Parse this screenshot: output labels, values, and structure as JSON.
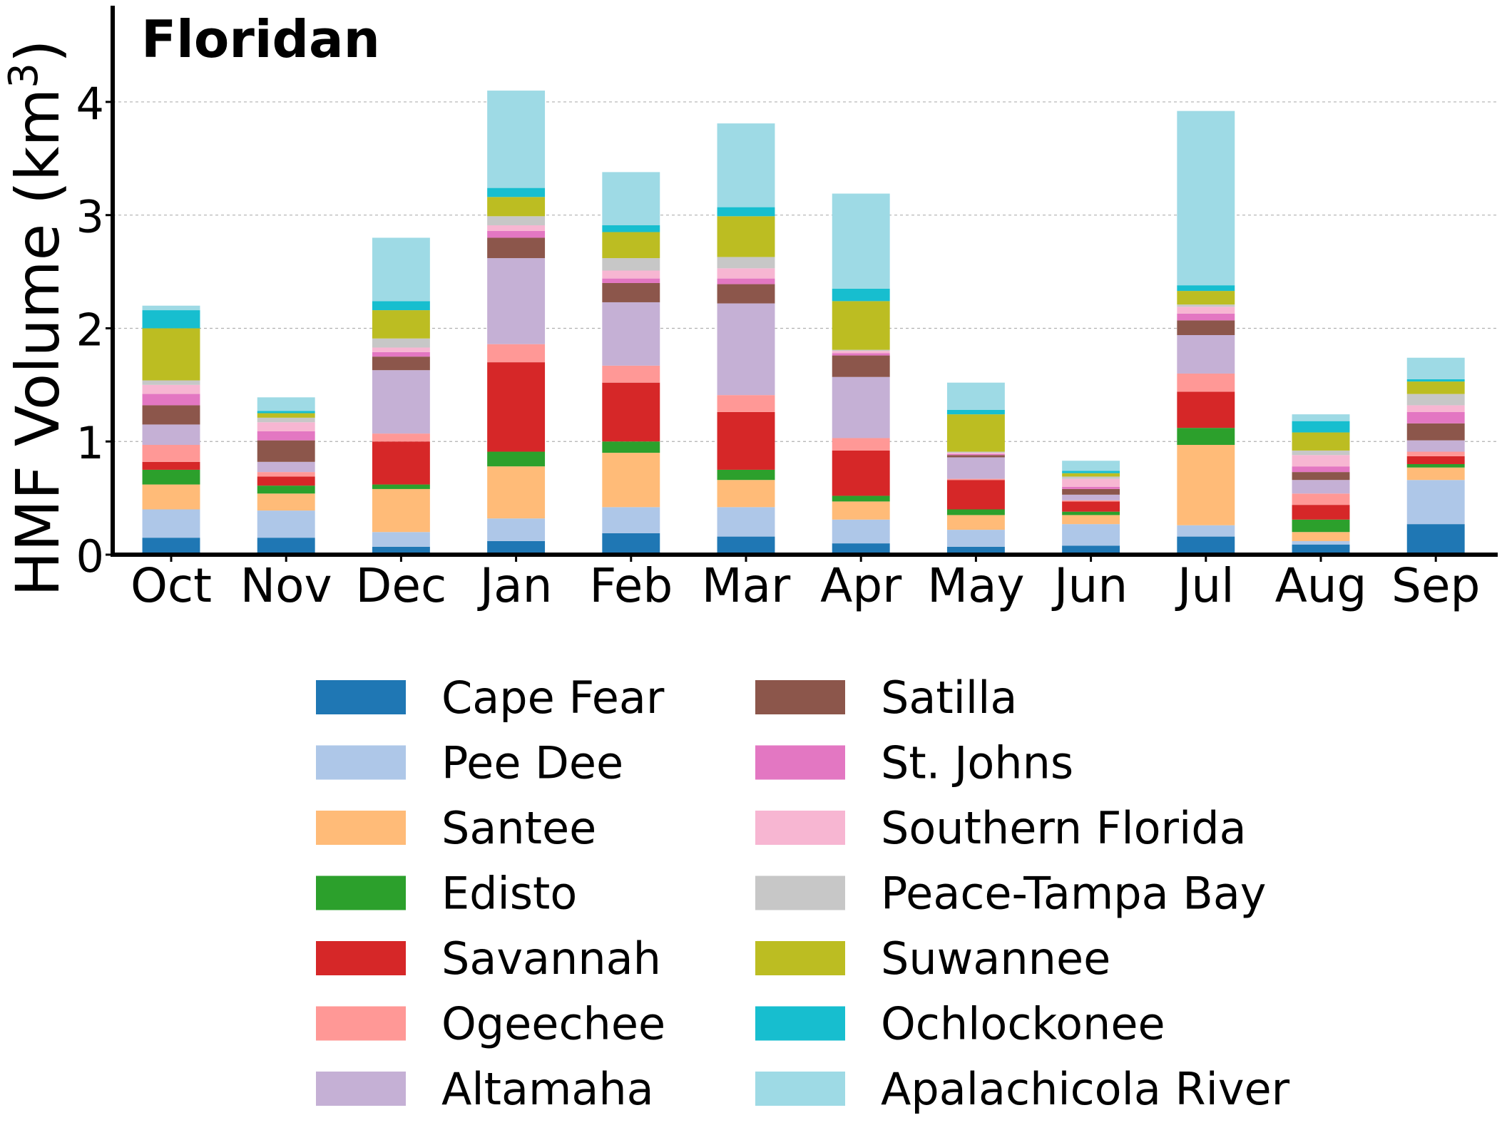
{
  "chart_data": {
    "type": "bar",
    "stacked": true,
    "title": "Floridan",
    "ylabel": "HMF Volume (km",
    "ylabel_sup": "3",
    "ylabel_close": ")",
    "xlabel": "",
    "ylim": [
      0,
      4.85
    ],
    "yticks": [
      0,
      1,
      2,
      3,
      4
    ],
    "grid": "horizontal dashed",
    "legend_position": "bottom-center",
    "categories": [
      "Oct",
      "Nov",
      "Dec",
      "Jan",
      "Feb",
      "Mar",
      "Apr",
      "May",
      "Jun",
      "Jul",
      "Aug",
      "Sep"
    ],
    "series": [
      {
        "name": "Cape Fear",
        "color": "#1f77b4",
        "values": [
          0.15,
          0.15,
          0.07,
          0.12,
          0.19,
          0.16,
          0.1,
          0.07,
          0.08,
          0.16,
          0.09,
          0.27
        ]
      },
      {
        "name": "Pee Dee",
        "color": "#aec7e8",
        "values": [
          0.25,
          0.24,
          0.13,
          0.2,
          0.23,
          0.26,
          0.21,
          0.15,
          0.19,
          0.1,
          0.03,
          0.39
        ]
      },
      {
        "name": "Santee",
        "color": "#ffbb78",
        "values": [
          0.22,
          0.15,
          0.38,
          0.46,
          0.48,
          0.24,
          0.16,
          0.13,
          0.08,
          0.71,
          0.08,
          0.11
        ]
      },
      {
        "name": "Edisto",
        "color": "#2ca02c",
        "values": [
          0.13,
          0.07,
          0.04,
          0.13,
          0.1,
          0.09,
          0.05,
          0.05,
          0.03,
          0.15,
          0.11,
          0.03
        ]
      },
      {
        "name": "Savannah",
        "color": "#d62728",
        "values": [
          0.07,
          0.08,
          0.38,
          0.79,
          0.52,
          0.51,
          0.4,
          0.26,
          0.09,
          0.32,
          0.13,
          0.07
        ]
      },
      {
        "name": "Ogeechee",
        "color": "#ff9896",
        "values": [
          0.15,
          0.04,
          0.07,
          0.16,
          0.15,
          0.15,
          0.11,
          0.01,
          0.01,
          0.16,
          0.1,
          0.04
        ]
      },
      {
        "name": "Altamaha",
        "color": "#c5b0d5",
        "values": [
          0.18,
          0.09,
          0.56,
          0.76,
          0.56,
          0.81,
          0.54,
          0.19,
          0.05,
          0.34,
          0.12,
          0.1
        ]
      },
      {
        "name": "Satilla",
        "color": "#8c564b",
        "values": [
          0.17,
          0.19,
          0.12,
          0.18,
          0.17,
          0.17,
          0.19,
          0.02,
          0.05,
          0.13,
          0.07,
          0.15
        ]
      },
      {
        "name": "St. Johns",
        "color": "#e377c2",
        "values": [
          0.1,
          0.08,
          0.04,
          0.06,
          0.04,
          0.05,
          0.02,
          0.01,
          0.02,
          0.06,
          0.05,
          0.1
        ]
      },
      {
        "name": "Southern Florida",
        "color": "#f7b6d2",
        "values": [
          0.08,
          0.08,
          0.04,
          0.05,
          0.07,
          0.09,
          0.02,
          0.01,
          0.07,
          0.06,
          0.1,
          0.06
        ]
      },
      {
        "name": "Peace-Tampa Bay",
        "color": "#c7c7c7",
        "values": [
          0.04,
          0.04,
          0.08,
          0.08,
          0.11,
          0.1,
          0.01,
          0.01,
          0.02,
          0.02,
          0.04,
          0.1
        ]
      },
      {
        "name": "Suwannee",
        "color": "#bcbd22",
        "values": [
          0.46,
          0.04,
          0.25,
          0.17,
          0.23,
          0.36,
          0.43,
          0.33,
          0.03,
          0.12,
          0.16,
          0.11
        ]
      },
      {
        "name": "Ochlockonee",
        "color": "#17becf",
        "values": [
          0.16,
          0.02,
          0.08,
          0.08,
          0.06,
          0.08,
          0.11,
          0.04,
          0.02,
          0.05,
          0.1,
          0.02
        ]
      },
      {
        "name": "Apalachicola River",
        "color": "#9edae5",
        "values": [
          0.04,
          0.12,
          0.56,
          0.86,
          0.47,
          0.74,
          0.84,
          0.24,
          0.09,
          1.54,
          0.06,
          0.19
        ]
      }
    ]
  }
}
